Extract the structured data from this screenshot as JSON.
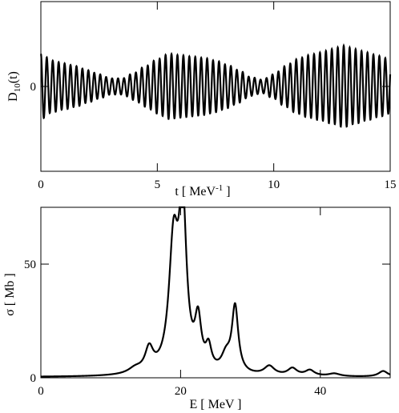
{
  "chart_data": [
    {
      "type": "line",
      "xlabel": "t [ MeV",
      "xlabel_sup": "-1",
      "xlabel_tail": " ]",
      "ylabel": "D",
      "ylabel_sub": "10",
      "ylabel_tail": "(t)",
      "xlim": [
        0,
        15
      ],
      "ylim": [
        -1.25,
        1.25
      ],
      "x_ticks": [
        0,
        5,
        10,
        15
      ],
      "x_tick_labels": [
        "0",
        "5",
        "10",
        "15"
      ],
      "y_ticks": [
        0
      ],
      "y_tick_labels": [
        "0"
      ],
      "grid": false,
      "series": [
        {
          "envelope_t": [
            0,
            0.5,
            1,
            1.5,
            2,
            2.5,
            3,
            3.5,
            4,
            4.5,
            5,
            5.5,
            6,
            6.5,
            7,
            7.5,
            8,
            8.5,
            9,
            9.5,
            10,
            10.5,
            11,
            11.5,
            12,
            12.5,
            13,
            13.5,
            14,
            14.5,
            15
          ],
          "envelope_amp": [
            0.48,
            0.38,
            0.34,
            0.3,
            0.24,
            0.18,
            0.12,
            0.12,
            0.2,
            0.3,
            0.4,
            0.48,
            0.46,
            0.44,
            0.42,
            0.38,
            0.32,
            0.24,
            0.14,
            0.1,
            0.18,
            0.3,
            0.4,
            0.46,
            0.5,
            0.55,
            0.6,
            0.55,
            0.5,
            0.45,
            0.4
          ],
          "oscillation_period": 0.255,
          "offset": 0.08
        }
      ]
    },
    {
      "type": "line",
      "xlabel": "E [ MeV ]",
      "ylabel": "σ [ Mb ]",
      "xlim": [
        0,
        50
      ],
      "ylim": [
        0,
        75
      ],
      "x_ticks": [
        0,
        20,
        40
      ],
      "x_tick_labels": [
        "0",
        "20",
        "40"
      ],
      "y_ticks": [
        0,
        50
      ],
      "y_tick_labels": [
        "0",
        "50"
      ],
      "grid": false,
      "series": [
        {
          "peaks": [
            {
              "E": 13.5,
              "height": 2.3,
              "width": 1.2
            },
            {
              "E": 15.5,
              "height": 10.0,
              "width": 0.7
            },
            {
              "E": 19.0,
              "height": 55.0,
              "width": 0.8
            },
            {
              "E": 20.3,
              "height": 70.0,
              "width": 0.65
            },
            {
              "E": 22.5,
              "height": 21.0,
              "width": 0.55
            },
            {
              "E": 24.0,
              "height": 9.5,
              "width": 0.5
            },
            {
              "E": 26.5,
              "height": 7.0,
              "width": 0.8
            },
            {
              "E": 27.8,
              "height": 29.0,
              "width": 0.55
            },
            {
              "E": 32.7,
              "height": 4.0,
              "width": 0.9
            },
            {
              "E": 36.0,
              "height": 3.2,
              "width": 0.8
            },
            {
              "E": 38.5,
              "height": 2.5,
              "width": 0.8
            },
            {
              "E": 42.0,
              "height": 1.2,
              "width": 1.0
            },
            {
              "E": 49.0,
              "height": 2.5,
              "width": 0.8
            }
          ],
          "baseline": 0.3
        }
      ]
    }
  ]
}
